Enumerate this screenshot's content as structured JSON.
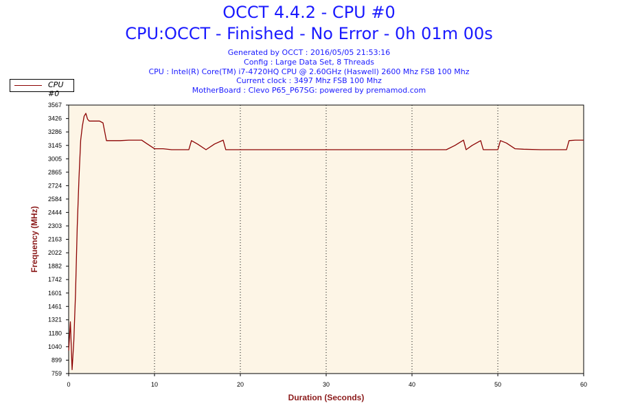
{
  "header": {
    "title": "OCCT 4.4.2 - CPU #0",
    "subtitle": "CPU:OCCT - Finished - No Error - 0h 01m 00s",
    "info_lines": [
      "Generated by OCCT : 2016/05/05 21:53:16",
      "Config : Large Data Set, 8 Threads",
      "CPU : Intel(R) Core(TM) i7-4720HQ CPU @ 2.60GHz (Haswell) 2600 Mhz FSB 100 Mhz",
      "Current clock : 3497 Mhz FSB 100 Mhz",
      "MotherBoard : Clevo P65_P67SG: powered by premamod.com"
    ]
  },
  "colors": {
    "plot_background": "#fdf5e6",
    "series": "#8b0000",
    "axis_label": "#8b1a1a",
    "title": "#1a1aff"
  },
  "chart_data": {
    "type": "line",
    "xlabel": "Duration (Seconds)",
    "ylabel": "Frequency (MHz)",
    "xlim": [
      0,
      60
    ],
    "ylim": [
      759,
      3567
    ],
    "x_ticks": [
      0,
      10,
      20,
      30,
      40,
      50,
      60
    ],
    "y_ticks": [
      759,
      899,
      1040,
      1180,
      1321,
      1461,
      1601,
      1742,
      1882,
      2022,
      2163,
      2303,
      2444,
      2584,
      2724,
      2865,
      3005,
      3145,
      3286,
      3426,
      3567
    ],
    "grid": "vertical dotted",
    "legend": {
      "position": "top-left",
      "entries": [
        "CPU #0"
      ]
    },
    "series": [
      {
        "name": "CPU #0",
        "x": [
          0,
          0.2,
          0.4,
          0.6,
          0.8,
          1.0,
          1.2,
          1.4,
          1.6,
          1.8,
          2.0,
          2.2,
          2.4,
          3.0,
          3.6,
          4.0,
          4.4,
          5.0,
          6.0,
          7.0,
          8.0,
          8.5,
          9.0,
          10.0,
          11.0,
          12.0,
          13.0,
          14.0,
          14.3,
          15.0,
          16.0,
          17.0,
          18.0,
          18.3,
          20.0,
          25.0,
          30.0,
          35.0,
          40.0,
          44.0,
          45.0,
          46.0,
          46.3,
          47.0,
          48.0,
          48.3,
          50.0,
          50.3,
          51.0,
          52.0,
          53.0,
          55.0,
          57.0,
          58.0,
          58.3,
          59.0,
          60.0
        ],
        "y": [
          1000,
          1300,
          800,
          1100,
          1600,
          2300,
          2800,
          3200,
          3350,
          3450,
          3480,
          3420,
          3400,
          3400,
          3400,
          3380,
          3195,
          3195,
          3195,
          3200,
          3200,
          3200,
          3170,
          3110,
          3110,
          3100,
          3100,
          3100,
          3195,
          3160,
          3100,
          3160,
          3200,
          3100,
          3100,
          3100,
          3100,
          3100,
          3100,
          3100,
          3145,
          3200,
          3100,
          3145,
          3195,
          3100,
          3100,
          3195,
          3170,
          3110,
          3105,
          3100,
          3100,
          3100,
          3195,
          3200,
          3200
        ]
      }
    ]
  }
}
